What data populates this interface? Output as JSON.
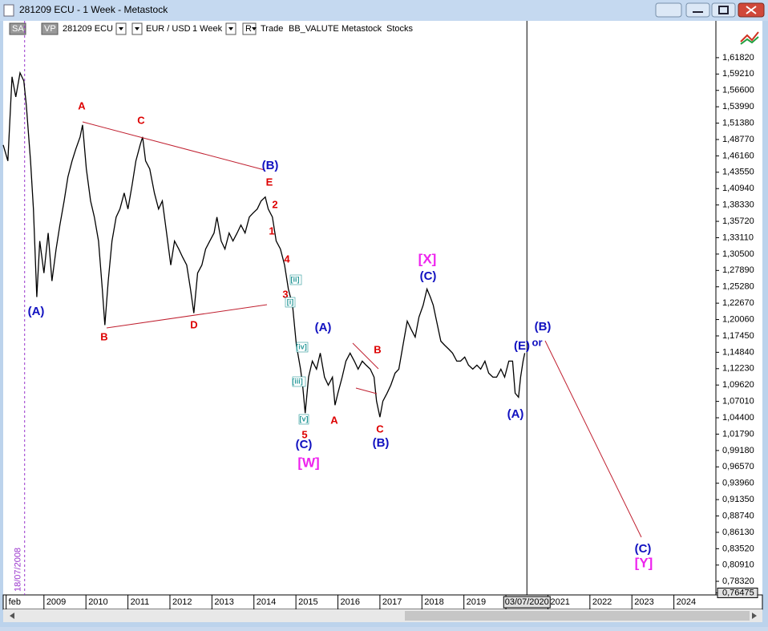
{
  "window": {
    "title": "281209 ECU - 1 Week - Metastock"
  },
  "toolbar": {
    "items": [
      "SA",
      "VP",
      "281209 ECU",
      "EUR / USD",
      "1 Week",
      "R",
      "Trade",
      "BB_VALUTE",
      "Metastock",
      "Stocks"
    ]
  },
  "chart_data": {
    "type": "line",
    "series": [
      {
        "color": "#000000",
        "x": [
          2008.03,
          2008.14,
          2008.24,
          2008.33,
          2008.43,
          2008.52,
          2008.58,
          2008.68,
          2008.75,
          2008.83,
          2008.9,
          2009.0,
          2009.1,
          2009.19,
          2009.29,
          2009.38,
          2009.48,
          2009.57,
          2009.67,
          2009.76,
          2009.86,
          2009.92,
          2010.01,
          2010.11,
          2010.2,
          2010.3,
          2010.39,
          2010.45,
          2010.53,
          2010.62,
          2010.72,
          2010.81,
          2010.91,
          2011.0,
          2011.1,
          2011.19,
          2011.29,
          2011.35,
          2011.42,
          2011.52,
          2011.63,
          2011.73,
          2011.82,
          2011.92,
          2012.02,
          2012.11,
          2012.21,
          2012.3,
          2012.4,
          2012.49,
          2012.57,
          2012.66,
          2012.76,
          2012.85,
          2012.95,
          2013.05,
          2013.12,
          2013.22,
          2013.31,
          2013.41,
          2013.5,
          2013.6,
          2013.69,
          2013.79,
          2013.89,
          2013.98,
          2014.08,
          2014.17,
          2014.27,
          2014.34,
          2014.44,
          2014.53,
          2014.63,
          2014.73,
          2014.82,
          2014.92,
          2015.01,
          2015.11,
          2015.16,
          2015.22,
          2015.3,
          2015.39,
          2015.49,
          2015.58,
          2015.68,
          2015.77,
          2015.87,
          2015.93,
          2016.0,
          2016.1,
          2016.19,
          2016.29,
          2016.39,
          2016.48,
          2016.58,
          2016.67,
          2016.77,
          2016.86,
          2016.92,
          2017.0,
          2017.07,
          2017.17,
          2017.26,
          2017.36,
          2017.45,
          2017.55,
          2017.65,
          2017.74,
          2017.84,
          2017.93,
          2018.03,
          2018.12,
          2018.2,
          2018.27,
          2018.35,
          2018.45,
          2018.54,
          2018.64,
          2018.73,
          2018.83,
          2018.92,
          2019.02,
          2019.11,
          2019.21,
          2019.31,
          2019.4,
          2019.5,
          2019.59,
          2019.69,
          2019.78,
          2019.88,
          2019.97,
          2020.07,
          2020.16,
          2020.22,
          2020.3,
          2020.35,
          2020.41,
          2020.45
        ],
        "values": [
          1.479,
          1.4535,
          1.5876,
          1.5556,
          1.5939,
          1.5812,
          1.5429,
          1.4535,
          1.3769,
          1.2364,
          1.3258,
          1.2747,
          1.3386,
          1.262,
          1.313,
          1.3513,
          1.3897,
          1.428,
          1.4535,
          1.4726,
          1.4918,
          1.5109,
          1.4407,
          1.3897,
          1.3641,
          1.3258,
          1.2492,
          1.1917,
          1.262,
          1.3258,
          1.3641,
          1.3769,
          1.4024,
          1.3769,
          1.4152,
          1.4535,
          1.479,
          1.4918,
          1.4535,
          1.4407,
          1.4024,
          1.3769,
          1.3897,
          1.3386,
          1.2875,
          1.3258,
          1.313,
          1.3003,
          1.2875,
          1.2492,
          1.2109,
          1.2747,
          1.2875,
          1.313,
          1.3258,
          1.3386,
          1.3641,
          1.3258,
          1.313,
          1.3386,
          1.3258,
          1.3386,
          1.3513,
          1.3386,
          1.3641,
          1.3705,
          1.3769,
          1.3897,
          1.396,
          1.3769,
          1.3641,
          1.3258,
          1.313,
          1.2875,
          1.2492,
          1.2237,
          1.1598,
          1.1215,
          1.096,
          1.0513,
          1.1088,
          1.1343,
          1.1215,
          1.1471,
          1.1088,
          1.096,
          1.1088,
          1.0641,
          1.0832,
          1.1088,
          1.1343,
          1.1471,
          1.1343,
          1.1215,
          1.1343,
          1.1279,
          1.1215,
          1.1088,
          1.0705,
          1.0449,
          1.0705,
          1.0832,
          1.096,
          1.1151,
          1.1215,
          1.1598,
          1.1981,
          1.1854,
          1.1726,
          1.2045,
          1.2237,
          1.2492,
          1.2364,
          1.2237,
          1.1981,
          1.1662,
          1.1598,
          1.1534,
          1.1471,
          1.1343,
          1.1343,
          1.1407,
          1.1279,
          1.1215,
          1.1279,
          1.1215,
          1.1343,
          1.1151,
          1.1088,
          1.1088,
          1.1215,
          1.1088,
          1.1343,
          1.1343,
          1.0832,
          1.0768,
          1.1088,
          1.1343,
          1.1471
        ]
      }
    ],
    "xlim": [
      2008.03,
      2025.0
    ],
    "xticks": [
      {
        "value": 2008.1,
        "label": "feb"
      },
      2009,
      2010,
      2011,
      2012,
      2013,
      2014,
      2015,
      2016,
      2017,
      2018,
      2019,
      2020,
      2021,
      2022,
      2023,
      2024
    ],
    "ylim": [
      0.7615,
      1.6769
    ],
    "yticks": [
      {
        "value": 1.6182,
        "label": "1,61820"
      },
      {
        "value": 1.5921,
        "label": "1,59210"
      },
      {
        "value": 1.566,
        "label": "1,56600"
      },
      {
        "value": 1.5399,
        "label": "1,53990"
      },
      {
        "value": 1.5138,
        "label": "1,51380"
      },
      {
        "value": 1.4877,
        "label": "1,48770"
      },
      {
        "value": 1.4616,
        "label": "1,46160"
      },
      {
        "value": 1.4355,
        "label": "1,43550"
      },
      {
        "value": 1.4094,
        "label": "1,40940"
      },
      {
        "value": 1.3833,
        "label": "1,38330"
      },
      {
        "value": 1.3572,
        "label": "1,35720"
      },
      {
        "value": 1.3311,
        "label": "1,33110"
      },
      {
        "value": 1.305,
        "label": "1,30500"
      },
      {
        "value": 1.2789,
        "label": "1,27890"
      },
      {
        "value": 1.2528,
        "label": "1,25280"
      },
      {
        "value": 1.2267,
        "label": "1,22670"
      },
      {
        "value": 1.2006,
        "label": "1,20060"
      },
      {
        "value": 1.1745,
        "label": "1,17450"
      },
      {
        "value": 1.1484,
        "label": "1,14840"
      },
      {
        "value": 1.1223,
        "label": "1,12230"
      },
      {
        "value": 1.0962,
        "label": "1,09620"
      },
      {
        "value": 1.0701,
        "label": "1,07010"
      },
      {
        "value": 1.044,
        "label": "1,04400"
      },
      {
        "value": 1.0179,
        "label": "1,01790"
      },
      {
        "value": 0.9918,
        "label": "0,99180"
      },
      {
        "value": 0.9657,
        "label": "0,96570"
      },
      {
        "value": 0.9396,
        "label": "0,93960"
      },
      {
        "value": 0.9135,
        "label": "0,91350"
      },
      {
        "value": 0.8874,
        "label": "0,88740"
      },
      {
        "value": 0.8613,
        "label": "0,86130"
      },
      {
        "value": 0.8352,
        "label": "0,83520"
      },
      {
        "value": 0.8091,
        "label": "0,80910"
      },
      {
        "value": 0.7832,
        "label": "0,78320"
      },
      {
        "value": 0.76475,
        "label": "0,76475"
      }
    ],
    "markers": [
      {
        "x": 2008.54,
        "label": "18/07/2008",
        "color": "#9933cc"
      },
      {
        "x": 2020.5,
        "label": "03/07/2020",
        "color": "#000000"
      }
    ],
    "annotations": [
      {
        "text": "(A)",
        "color": "#1010c0"
      },
      {
        "text": "A",
        "color": "#dd0000"
      },
      {
        "text": "C",
        "color": "#dd0000"
      },
      {
        "text": "B",
        "color": "#dd0000"
      },
      {
        "text": "D",
        "color": "#dd0000"
      },
      {
        "text": "(B)",
        "color": "#1010c0"
      },
      {
        "text": "E",
        "color": "#dd0000"
      },
      {
        "text": "2",
        "color": "#dd0000"
      },
      {
        "text": "1",
        "color": "#dd0000"
      },
      {
        "text": "4",
        "color": "#dd0000"
      },
      {
        "text": "[ii]",
        "color": "#2a9a9a"
      },
      {
        "text": "3",
        "color": "#dd0000"
      },
      {
        "text": "[i]",
        "color": "#2a9a9a"
      },
      {
        "text": "[iv]",
        "color": "#2a9a9a"
      },
      {
        "text": "[iii]",
        "color": "#2a9a9a"
      },
      {
        "text": "[v]",
        "color": "#2a9a9a"
      },
      {
        "text": "5",
        "color": "#dd0000"
      },
      {
        "text": "(C)",
        "color": "#1010c0"
      },
      {
        "text": "[W]",
        "color": "#ee22ee"
      },
      {
        "text": "(A)",
        "color": "#1010c0"
      },
      {
        "text": "A",
        "color": "#dd0000"
      },
      {
        "text": "B",
        "color": "#dd0000"
      },
      {
        "text": "C",
        "color": "#dd0000"
      },
      {
        "text": "(B)",
        "color": "#1010c0"
      },
      {
        "text": "[X]",
        "color": "#ee22ee"
      },
      {
        "text": "(C)",
        "color": "#1010c0"
      },
      {
        "text": "(E)",
        "color": "#1010c0"
      },
      {
        "text": "or",
        "color": "#1010c0"
      },
      {
        "text": "(B)",
        "color": "#1010c0"
      },
      {
        "text": "(A)",
        "color": "#1010c0"
      },
      {
        "text": "(C)",
        "color": "#1010c0"
      },
      {
        "text": "[Y]",
        "color": "#ee22ee"
      }
    ]
  }
}
